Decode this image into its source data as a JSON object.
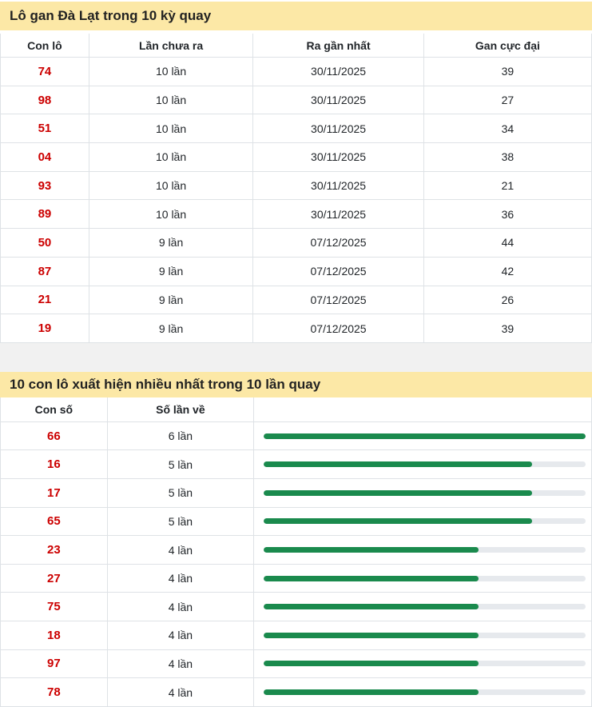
{
  "colors": {
    "section_header_bg": "#fce8a6",
    "section_header_text": "#222222",
    "number_red": "#cc0000",
    "bar_green": "#1a8a4d",
    "bar_track": "#e6e9ed",
    "border": "#dee2e6",
    "divider_gray": "#f1f1f1"
  },
  "section1": {
    "title": "Lô gan Đà Lạt trong 10 kỳ quay",
    "columns": [
      "Con lô",
      "Lần chưa ra",
      "Ra gần nhất",
      "Gan cực đại"
    ],
    "rows": [
      {
        "number": "74",
        "missed": "10 lần",
        "last_seen": "30/11/2025",
        "max_gap": "39"
      },
      {
        "number": "98",
        "missed": "10 lần",
        "last_seen": "30/11/2025",
        "max_gap": "27"
      },
      {
        "number": "51",
        "missed": "10 lần",
        "last_seen": "30/11/2025",
        "max_gap": "34"
      },
      {
        "number": "04",
        "missed": "10 lần",
        "last_seen": "30/11/2025",
        "max_gap": "38"
      },
      {
        "number": "93",
        "missed": "10 lần",
        "last_seen": "30/11/2025",
        "max_gap": "21"
      },
      {
        "number": "89",
        "missed": "10 lần",
        "last_seen": "30/11/2025",
        "max_gap": "36"
      },
      {
        "number": "50",
        "missed": "9 lần",
        "last_seen": "07/12/2025",
        "max_gap": "44"
      },
      {
        "number": "87",
        "missed": "9 lần",
        "last_seen": "07/12/2025",
        "max_gap": "42"
      },
      {
        "number": "21",
        "missed": "9 lần",
        "last_seen": "07/12/2025",
        "max_gap": "26"
      },
      {
        "number": "19",
        "missed": "9 lần",
        "last_seen": "07/12/2025",
        "max_gap": "39"
      }
    ]
  },
  "section2": {
    "title": "10 con lô xuất hiện nhiều nhất trong 10 lần quay",
    "columns": [
      "Con số",
      "Số lần về"
    ],
    "max_count": 6,
    "rows": [
      {
        "number": "66",
        "count_label": "6 lần",
        "count": 6
      },
      {
        "number": "16",
        "count_label": "5 lần",
        "count": 5
      },
      {
        "number": "17",
        "count_label": "5 lần",
        "count": 5
      },
      {
        "number": "65",
        "count_label": "5 lần",
        "count": 5
      },
      {
        "number": "23",
        "count_label": "4 lần",
        "count": 4
      },
      {
        "number": "27",
        "count_label": "4 lần",
        "count": 4
      },
      {
        "number": "75",
        "count_label": "4 lần",
        "count": 4
      },
      {
        "number": "18",
        "count_label": "4 lần",
        "count": 4
      },
      {
        "number": "97",
        "count_label": "4 lần",
        "count": 4
      },
      {
        "number": "78",
        "count_label": "4 lần",
        "count": 4
      }
    ]
  },
  "chart_data": {
    "type": "bar",
    "orientation": "horizontal",
    "title": "10 con lô xuất hiện nhiều nhất trong 10 lần quay",
    "categories": [
      "66",
      "16",
      "17",
      "65",
      "23",
      "27",
      "75",
      "18",
      "97",
      "78"
    ],
    "values": [
      6,
      5,
      5,
      5,
      4,
      4,
      4,
      4,
      4,
      4
    ],
    "value_labels": [
      "6 lần",
      "5 lần",
      "5 lần",
      "5 lần",
      "4 lần",
      "4 lần",
      "4 lần",
      "4 lần",
      "4 lần",
      "4 lần"
    ],
    "xlim": [
      0,
      6
    ],
    "grid": false,
    "legend": false,
    "bar_color": "#1a8a4d",
    "track_color": "#e6e9ed"
  }
}
